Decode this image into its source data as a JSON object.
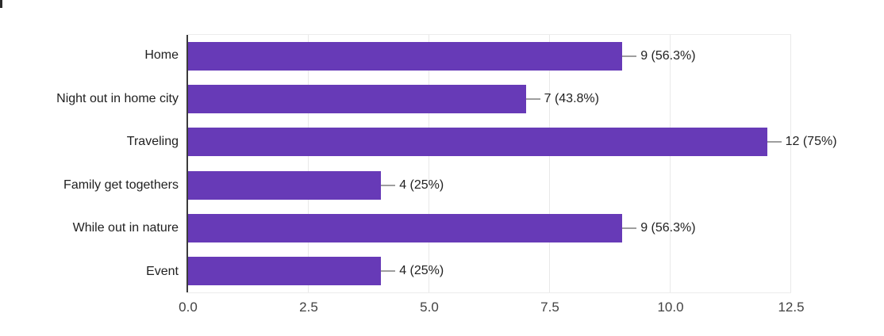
{
  "screen": {
    "background_color": "#ffffff",
    "corner_artifact_color": "#2b2b2b"
  },
  "chart_data": {
    "type": "bar",
    "orientation": "horizontal",
    "title": "",
    "xlabel": "",
    "ylabel": "",
    "categories": [
      "Home",
      "Night out in home city",
      "Traveling",
      "Family get togethers",
      "While out in nature",
      "Event"
    ],
    "values": [
      9,
      7,
      12,
      4,
      9,
      4
    ],
    "percentages": [
      56.3,
      43.8,
      75,
      25,
      56.3,
      25
    ],
    "value_labels": [
      "9 (56.3%)",
      "7 (43.8%)",
      "12 (75%)",
      "4 (25%)",
      "9 (56.3%)",
      "4 (25%)"
    ],
    "xlim": [
      0,
      12.5
    ],
    "xticks": [
      2.5,
      5,
      7.5,
      10,
      12.5
    ],
    "xtick_labels": [
      "0.0",
      "2.5",
      "5.0",
      "7.5",
      "10.0",
      "12.5"
    ],
    "xtick_positions": [
      0,
      2.5,
      5,
      7.5,
      10,
      12.5
    ],
    "grid": true,
    "legend": "none",
    "bar_color": "#673AB7",
    "gridline_color": "#e9e9e9",
    "axis_line_color": "#3b3b3b",
    "connector_color": "#9e9e9e",
    "category_label_color": "#212121",
    "value_label_color": "#212121",
    "tick_label_color": "#424242"
  }
}
